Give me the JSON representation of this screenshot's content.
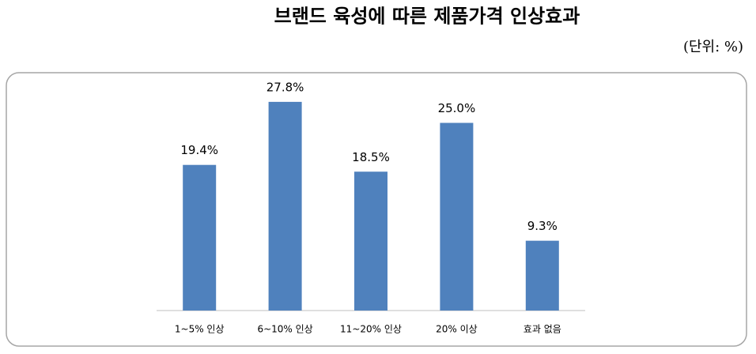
{
  "chart_data": {
    "type": "bar",
    "title": "브랜드 육성에 따른 제품가격 인상효과",
    "subtitle": "(단위: %)",
    "categories": [
      "1~5% 인상",
      "6~10% 인상",
      "11~20% 인상",
      "20% 이상",
      "효과 없음"
    ],
    "values": [
      19.4,
      27.8,
      18.5,
      25.0,
      9.3
    ],
    "value_labels": [
      "19.4%",
      "27.8%",
      "18.5%",
      "25.0%",
      "9.3%"
    ],
    "color": "#4f81bd"
  }
}
